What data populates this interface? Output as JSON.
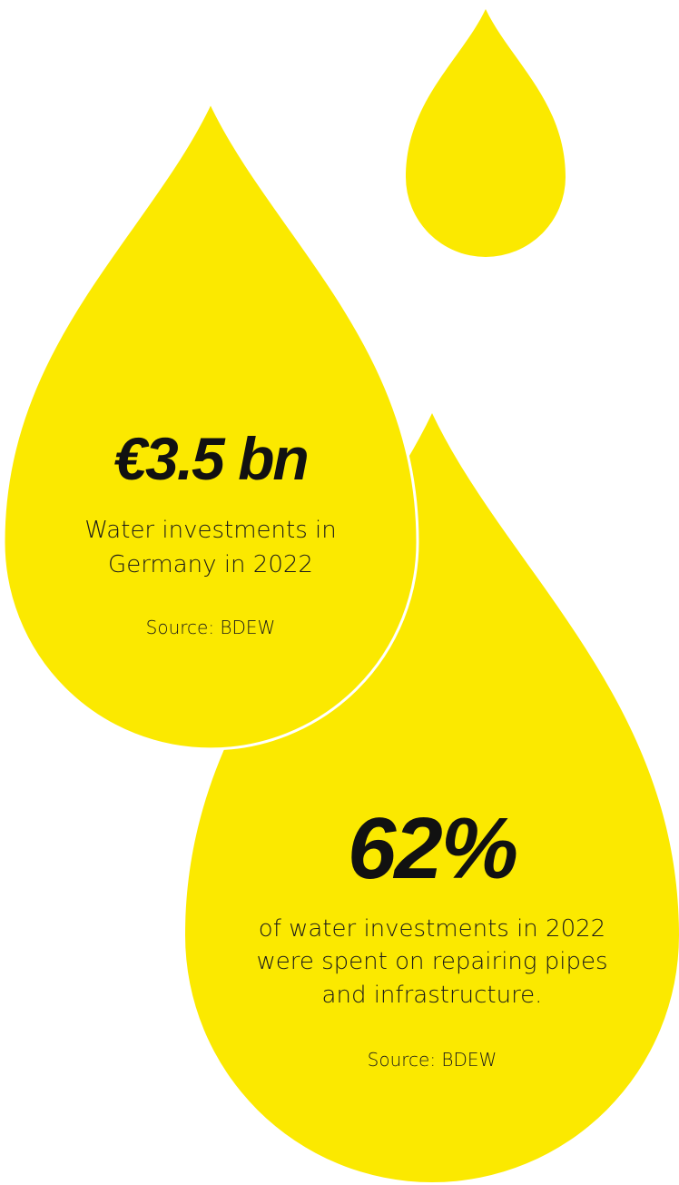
{
  "drops": [
    {
      "headline": "€3.5 bn",
      "description": [
        "Water investments in",
        "Germany in 2022"
      ],
      "source": "Source: BDEW"
    },
    {
      "headline": "62%",
      "description": [
        "of water investments in 2022",
        "were spent on repairing pipes",
        "and infrastructure."
      ],
      "source": "Source: BDEW"
    }
  ]
}
